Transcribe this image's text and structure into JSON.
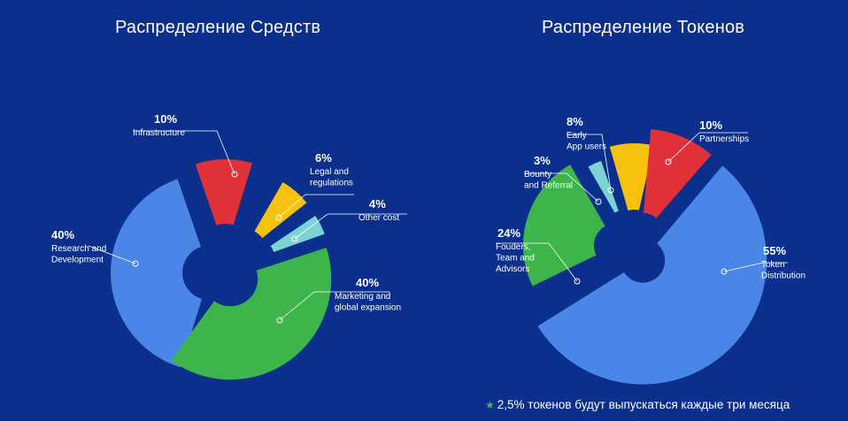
{
  "chart_data": [
    {
      "type": "pie",
      "title": "Распределение Средств",
      "slices": [
        {
          "pct": "40%",
          "value": 40,
          "label": [
            "Research and",
            "Development"
          ],
          "color": "#4a86e8"
        },
        {
          "pct": "10%",
          "value": 10,
          "label": [
            "Infrastructure"
          ],
          "color": "#e03138"
        },
        {
          "pct": "6%",
          "value": 6,
          "label": [
            "Legal and",
            "regulations"
          ],
          "color": "#f6c20d"
        },
        {
          "pct": "4%",
          "value": 4,
          "label": [
            "Other cost"
          ],
          "color": "#7bd3d3"
        },
        {
          "pct": "40%",
          "value": 40,
          "label": [
            "Marketing and",
            "global expansion"
          ],
          "color": "#3db54a"
        }
      ]
    },
    {
      "type": "pie",
      "title": "Распределение Токенов",
      "slices": [
        {
          "pct": "55%",
          "value": 55,
          "label": [
            "Token",
            "Distribution"
          ],
          "color": "#4a86e8"
        },
        {
          "pct": "24%",
          "value": 24,
          "label": [
            "Fouders,",
            "Team and",
            "Advisors"
          ],
          "color": "#3db54a",
          "starred": true
        },
        {
          "pct": "3%",
          "value": 3,
          "label": [
            "Bounty",
            "and Referral"
          ],
          "color": "#7bd3d3"
        },
        {
          "pct": "8%",
          "value": 8,
          "label": [
            "Early",
            "App users"
          ],
          "color": "#f6c20d"
        },
        {
          "pct": "10%",
          "value": 10,
          "label": [
            "Partnerships"
          ],
          "color": "#e03138"
        }
      ]
    }
  ],
  "footnote": {
    "icon": "star-icon",
    "text": "2,5% токенов будут выпускаться каждые три месяца"
  }
}
